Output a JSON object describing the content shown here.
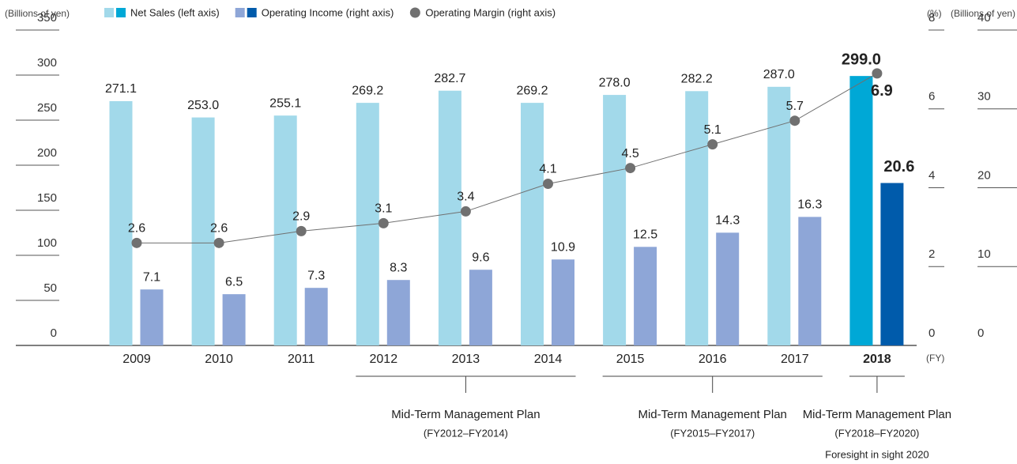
{
  "chart_data": {
    "type": "bar",
    "y_label": "(Billions of yen)",
    "y2_label": "(%)",
    "y3_label": "(Billions of yen)",
    "x_label": "(FY)",
    "categories": [
      "2009",
      "2010",
      "2011",
      "2012",
      "2013",
      "2014",
      "2015",
      "2016",
      "2017",
      "2018"
    ],
    "emphasis": [
      false,
      false,
      false,
      false,
      false,
      false,
      false,
      false,
      false,
      true
    ],
    "series": [
      {
        "name": "Net Sales (left axis)",
        "type": "bar",
        "axis": "y",
        "colors": [
          "#a2d9ea",
          "#a2d9ea",
          "#a2d9ea",
          "#a2d9ea",
          "#a2d9ea",
          "#a2d9ea",
          "#a2d9ea",
          "#a2d9ea",
          "#a2d9ea",
          "#00a8d6"
        ],
        "values": [
          271.1,
          253.0,
          255.1,
          269.2,
          282.7,
          269.2,
          278.0,
          282.2,
          287.0,
          299.0
        ],
        "value_labels": [
          "271.1",
          "253.0",
          "255.1",
          "269.2",
          "282.7",
          "269.2",
          "278.0",
          "282.2",
          "287.0",
          "299.0"
        ]
      },
      {
        "name": "Operating Income (right axis)",
        "type": "bar",
        "axis": "y3",
        "colors": [
          "#8ea6d7",
          "#8ea6d7",
          "#8ea6d7",
          "#8ea6d7",
          "#8ea6d7",
          "#8ea6d7",
          "#8ea6d7",
          "#8ea6d7",
          "#8ea6d7",
          "#005bab"
        ],
        "values": [
          7.1,
          6.5,
          7.3,
          8.3,
          9.6,
          10.9,
          12.5,
          14.3,
          16.3,
          20.6
        ]
      },
      {
        "name": "Operating Margin (right axis)",
        "type": "line",
        "axis": "y2",
        "color": "#707070",
        "values": [
          2.6,
          2.6,
          2.9,
          3.1,
          3.4,
          4.1,
          4.5,
          5.1,
          5.7,
          6.9
        ]
      }
    ],
    "ylim": [
      0,
      350
    ],
    "yticks": [
      0,
      50,
      100,
      150,
      200,
      250,
      300,
      350
    ],
    "y2lim": [
      0,
      8
    ],
    "y2ticks": [
      0,
      2,
      4,
      6,
      8
    ],
    "y3lim": [
      0,
      40
    ],
    "y3ticks": [
      0,
      10,
      20,
      30,
      40
    ],
    "annotations": [
      {
        "text": "Mid-Term Management Plan",
        "period": "(FY2012–FY2014)"
      },
      {
        "text": "Mid-Term Management Plan",
        "period": "(FY2015–FY2017)"
      },
      {
        "text": "Mid-Term Management Plan",
        "period": "(FY2018–FY2020)",
        "note": "Foresight in sight 2020"
      }
    ]
  }
}
